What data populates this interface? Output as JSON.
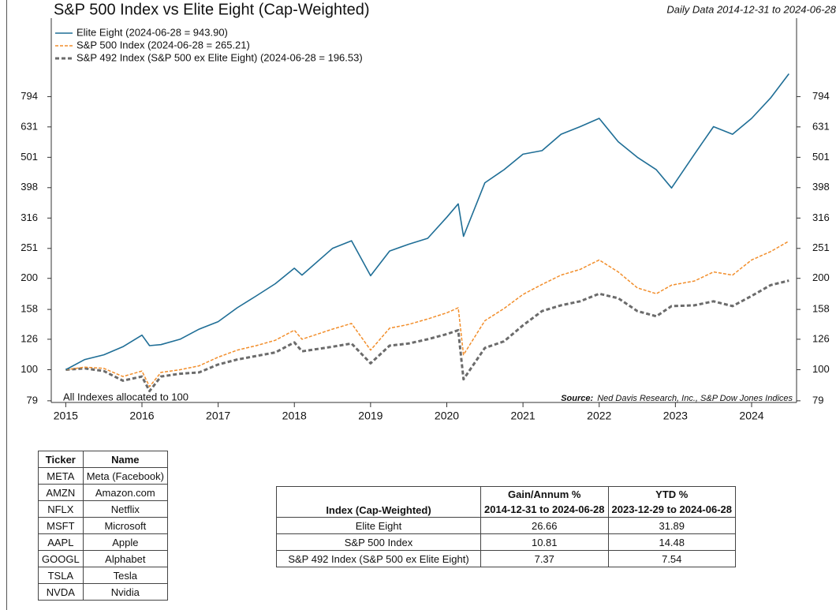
{
  "chart_data": {
    "type": "line",
    "title": "S&P 500 Index vs Elite Eight (Cap-Weighted)",
    "subtitle": "Daily Data 2014-12-31 to 2024-06-28",
    "annotation": "All Indexes allocated to 100",
    "source_label": "Source:",
    "source_text": "Ned Davis Research, Inc., S&P Dow Jones Indices",
    "log_scale": true,
    "grid": false,
    "legend": "top-left",
    "x": [
      2015,
      2015.25,
      2015.5,
      2015.75,
      2016,
      2016.1,
      2016.25,
      2016.5,
      2016.75,
      2017,
      2017.25,
      2017.5,
      2017.75,
      2018,
      2018.1,
      2018.5,
      2018.75,
      2019,
      2019.25,
      2019.5,
      2019.75,
      2020,
      2020.15,
      2020.22,
      2020.5,
      2020.75,
      2021,
      2021.25,
      2021.5,
      2021.75,
      2022,
      2022.25,
      2022.5,
      2022.75,
      2022.95,
      2023.25,
      2023.5,
      2023.75,
      2024,
      2024.25,
      2024.49
    ],
    "xlim": [
      2014.81,
      2024.59
    ],
    "xticks": [
      2015,
      2016,
      2017,
      2018,
      2019,
      2020,
      2021,
      2022,
      2023,
      2024
    ],
    "ylim": [
      78,
      1440
    ],
    "yticks": [
      79,
      100,
      126,
      158,
      200,
      251,
      316,
      398,
      501,
      631,
      794
    ],
    "series": [
      {
        "name": "Elite Eight (2024-06-28 = 943.90)",
        "color": "#1f6e96",
        "line_style": "solid",
        "values": [
          100,
          108,
          112,
          119,
          130,
          120,
          121,
          126,
          136,
          144,
          160,
          175,
          192,
          216,
          205,
          251,
          266,
          204,
          246,
          259,
          271,
          318,
          352,
          275,
          413,
          456,
          513,
          527,
          597,
          632,
          673,
          564,
          501,
          456,
          397,
          513,
          632,
          597,
          673,
          786,
          943.9
        ]
      },
      {
        "name": "S&P 500 Index (2024-06-28 = 265.21)",
        "color": "#f28e2b",
        "line_style": "dashed",
        "values": [
          100,
          102,
          101,
          95,
          99,
          88,
          98,
          100,
          103,
          110,
          116,
          120,
          125,
          135,
          126,
          136,
          142,
          116,
          137,
          141,
          147,
          154,
          160,
          112,
          145,
          159,
          177,
          191,
          205,
          214,
          230,
          210,
          186,
          178,
          190,
          196,
          210,
          205,
          230,
          245,
          265.21
        ]
      },
      {
        "name": "S&P 492 Index (S&P 500 ex Elite Eight) (2024-06-28 = 196.53)",
        "color": "#6b6b6b",
        "line_style": "dashed",
        "values": [
          100,
          101,
          99,
          92,
          95,
          85,
          95,
          97,
          98,
          104,
          108,
          111,
          114,
          123,
          115,
          119,
          122,
          105,
          120,
          122,
          126,
          131,
          135,
          93,
          118,
          124,
          140,
          156,
          163,
          168,
          178,
          172,
          156,
          150,
          162,
          163,
          168,
          162,
          175,
          190,
          196.53
        ]
      }
    ]
  },
  "tickers_table": {
    "header": [
      "Ticker",
      "Name"
    ],
    "rows": [
      [
        "META",
        "Meta (Facebook)"
      ],
      [
        "AMZN",
        "Amazon.com"
      ],
      [
        "NFLX",
        "Netflix"
      ],
      [
        "MSFT",
        "Microsoft"
      ],
      [
        "AAPL",
        "Apple"
      ],
      [
        "GOOGL",
        "Alphabet"
      ],
      [
        "TSLA",
        "Tesla"
      ],
      [
        "NVDA",
        "Nvidia"
      ]
    ]
  },
  "returns_table": {
    "header": {
      "index": "Index (Cap-Weighted)",
      "gain": "Gain/Annum %",
      "gain_period": "2014-12-31 to 2024-06-28",
      "ytd": "YTD %",
      "ytd_period": "2023-12-29 to 2024-06-28"
    },
    "rows": [
      [
        "Elite Eight",
        26.66,
        31.89
      ],
      [
        "S&P 500 Index",
        10.81,
        14.48
      ],
      [
        "S&P 492 Index (S&P 500 ex Elite Eight)",
        7.37,
        7.54
      ]
    ]
  }
}
